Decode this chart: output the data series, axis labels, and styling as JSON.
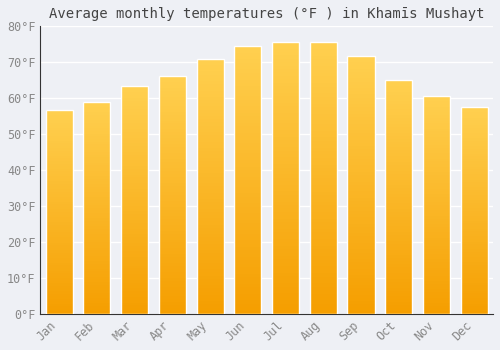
{
  "title": "Average monthly temperatures (°F ) in Khamīs Mushayt",
  "months": [
    "Jan",
    "Feb",
    "Mar",
    "Apr",
    "May",
    "Jun",
    "Jul",
    "Aug",
    "Sep",
    "Oct",
    "Nov",
    "Dec"
  ],
  "values": [
    56.7,
    59.0,
    63.3,
    66.2,
    71.0,
    74.5,
    75.7,
    75.5,
    71.8,
    65.0,
    60.6,
    57.5
  ],
  "bar_color_bottom": "#F5A000",
  "bar_color_top": "#FFD040",
  "bar_edge_color": "#FFFFFF",
  "background_color": "#EEF0F5",
  "plot_bg_color": "#EEF0F5",
  "grid_color": "#FFFFFF",
  "tick_label_color": "#888888",
  "title_color": "#444444",
  "spine_color": "#333333",
  "ylim": [
    0,
    80
  ],
  "yticks": [
    0,
    10,
    20,
    30,
    40,
    50,
    60,
    70,
    80
  ],
  "ytick_labels": [
    "0°F",
    "10°F",
    "20°F",
    "30°F",
    "40°F",
    "50°F",
    "60°F",
    "70°F",
    "80°F"
  ],
  "title_fontsize": 10,
  "tick_fontsize": 8.5,
  "figsize": [
    5.0,
    3.5
  ],
  "dpi": 100,
  "bar_width": 0.72
}
